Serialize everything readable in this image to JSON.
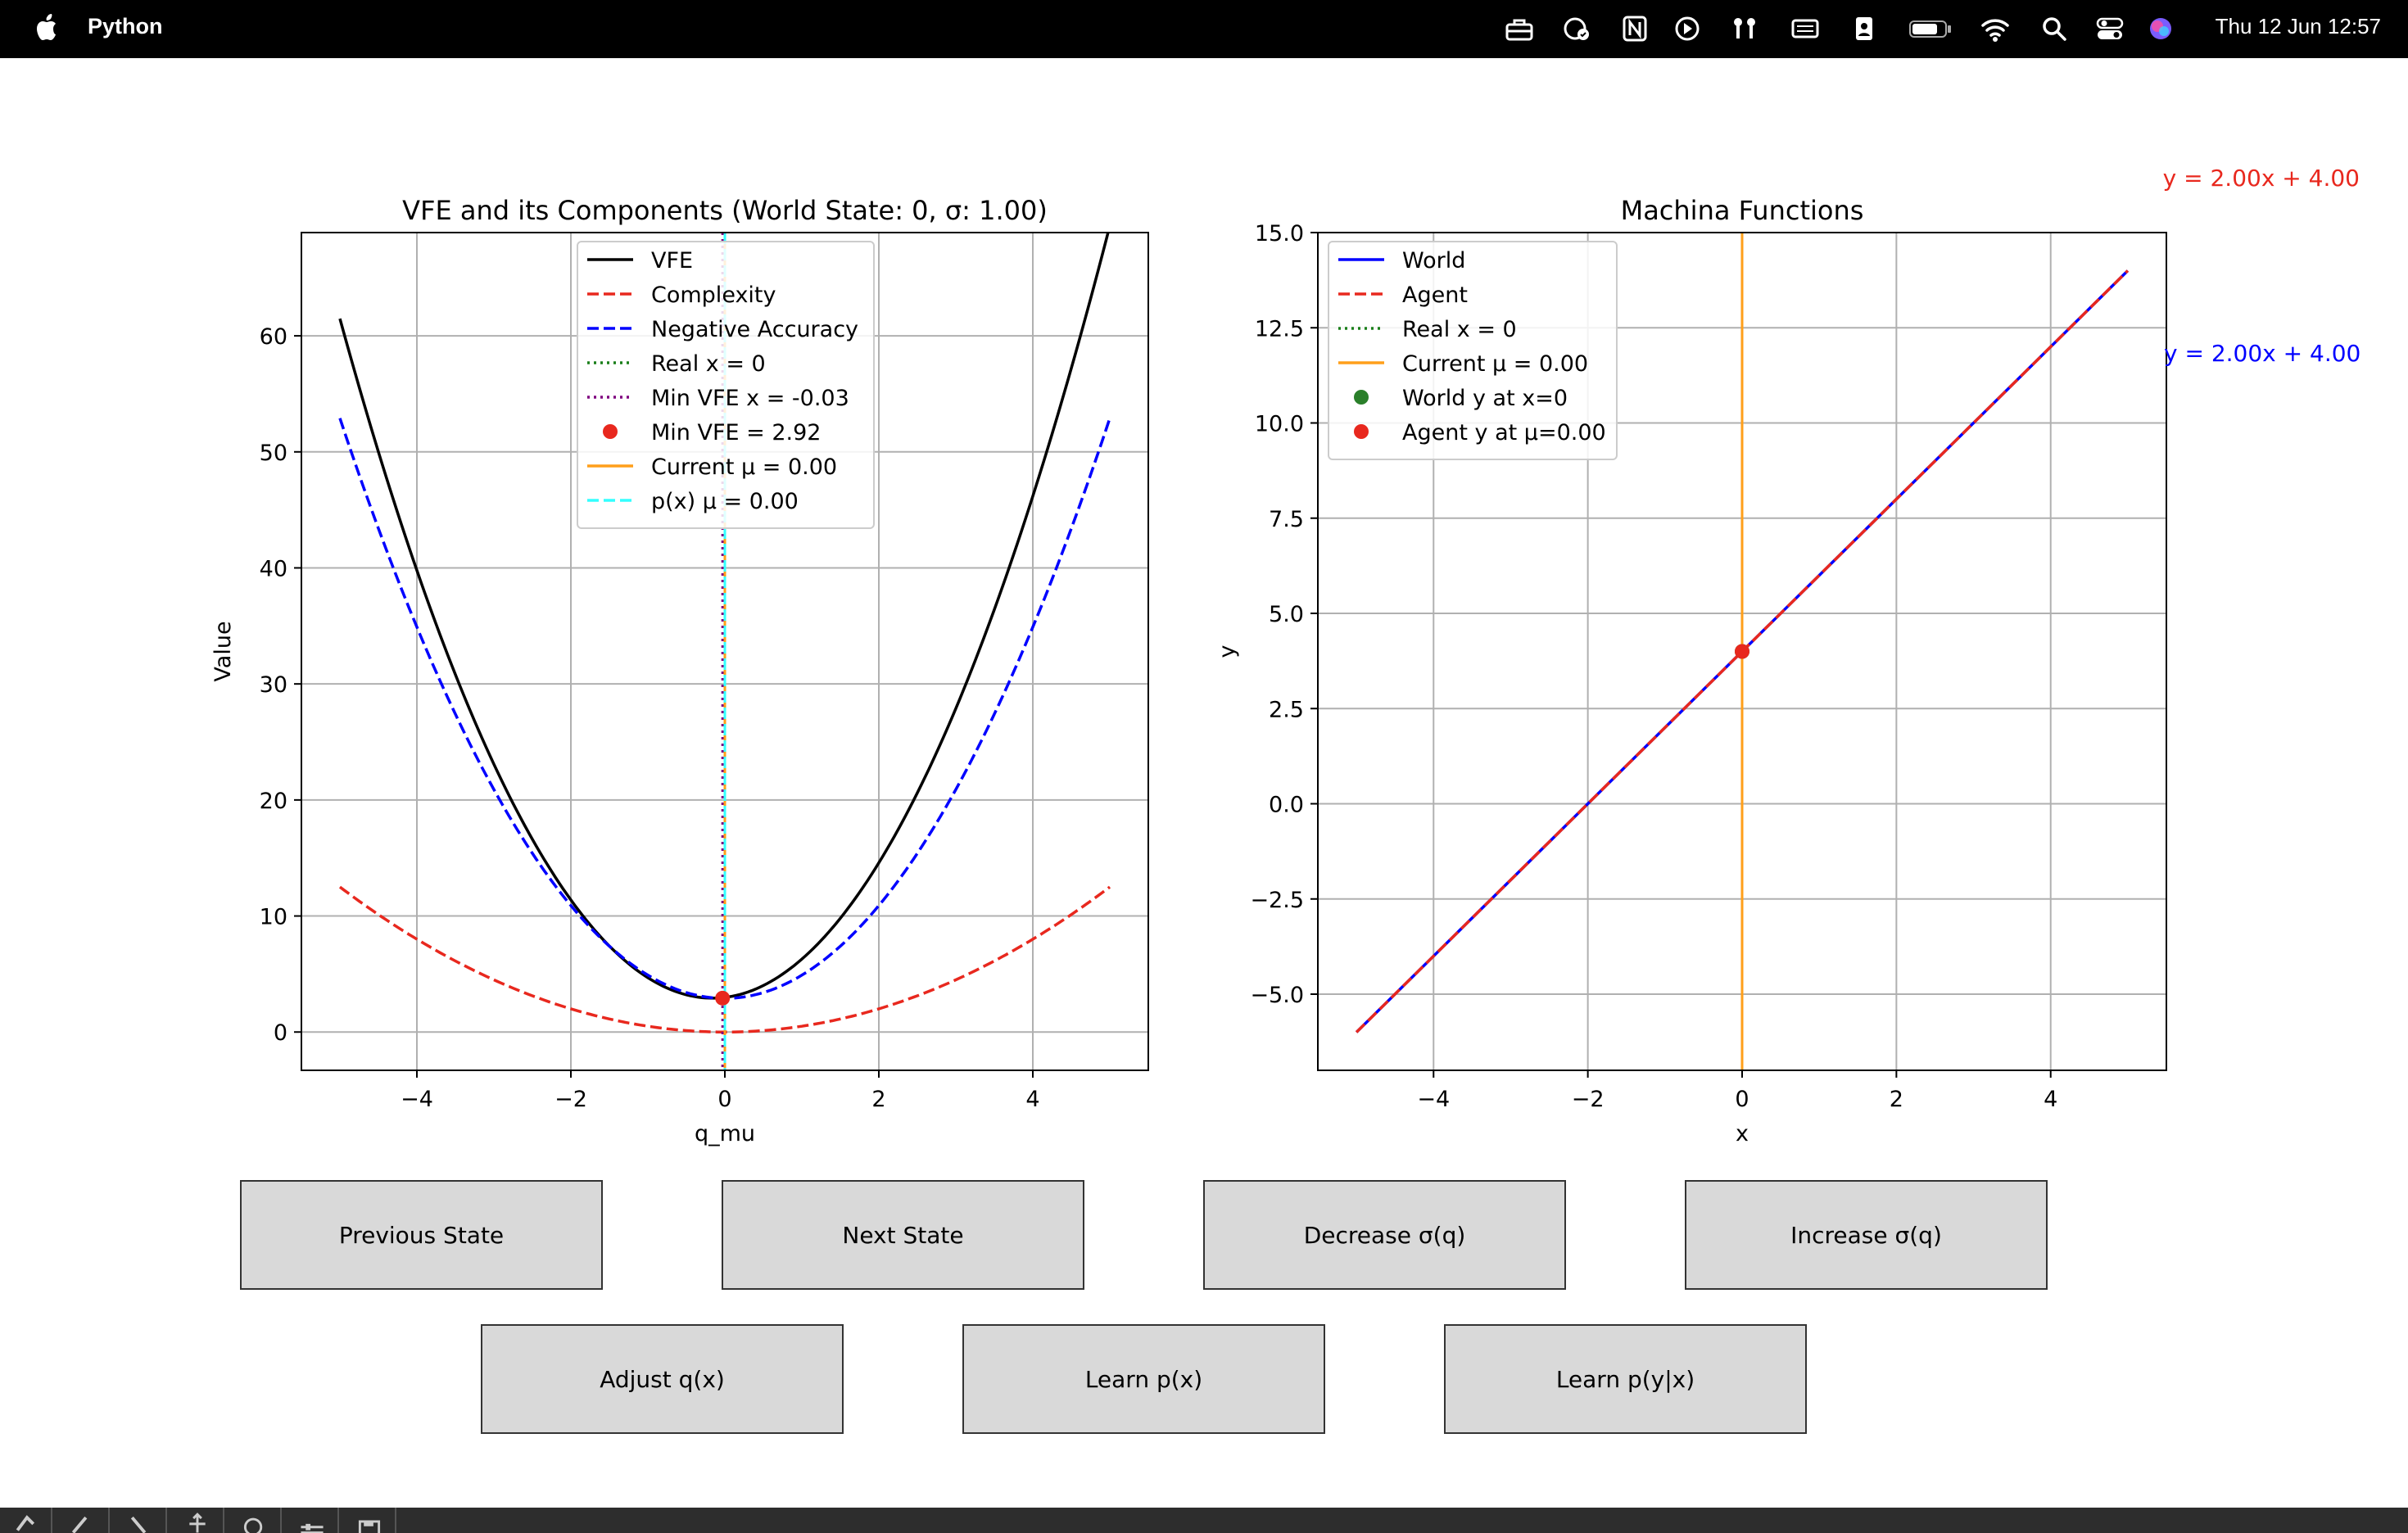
{
  "menubar": {
    "app_name": "Python",
    "clock": "Thu 12 Jun  12:57"
  },
  "annotations": {
    "agent_eq": "y = 2.00x + 4.00",
    "world_eq": "y = 2.00x + 4.00",
    "agent_color": "#e8281e",
    "world_color": "#0000ff"
  },
  "buttons": {
    "row1": [
      "Previous State",
      "Next State",
      "Decrease σ(q)",
      "Increase σ(q)"
    ],
    "row2": [
      "Adjust q(x)",
      "Learn p(x)",
      "Learn p(y|x)"
    ]
  },
  "chart_data": [
    {
      "type": "line",
      "title": "VFE and its Components (World State: 0, σ: 1.00)",
      "xlabel": "q_mu",
      "ylabel": "Value",
      "xlim": [
        -5.5,
        5.5
      ],
      "ylim": [
        -3.3,
        68.9
      ],
      "xticks": [
        -4,
        -2,
        0,
        2,
        4
      ],
      "xtick_labels": [
        "−4",
        "−2",
        "0",
        "2",
        "4"
      ],
      "yticks": [
        0,
        10,
        20,
        30,
        40,
        50,
        60
      ],
      "ytick_labels": [
        "0",
        "10",
        "20",
        "30",
        "40",
        "50",
        "60"
      ],
      "grid": true,
      "legend_position": "upper center",
      "series": [
        {
          "name": "VFE",
          "color": "#000000",
          "style": "solid",
          "quad": [
            2.5,
            -0.16,
            2.92
          ]
        },
        {
          "name": "Complexity",
          "color": "#e8281e",
          "style": "dashed",
          "quad": [
            0.5,
            0,
            0
          ]
        },
        {
          "name": "Negative Accuracy",
          "color": "#0000ff",
          "style": "dashed",
          "quad": [
            2.0,
            0,
            2.9
          ]
        }
      ],
      "x_range": [
        -5,
        5
      ],
      "vlines": [
        {
          "name": "Real x = 0",
          "x": 0,
          "color": "#1a7f1a",
          "style": "dotted"
        },
        {
          "name": "Min VFE x = -0.03",
          "x": -0.03,
          "color": "#7f007f",
          "style": "dotted"
        },
        {
          "name": "Current μ = 0.00",
          "x": 0,
          "color": "#ff9f1a",
          "style": "solid"
        },
        {
          "name": "p(x) μ = 0.00",
          "x": 0,
          "color": "#33ffff",
          "style": "dashed"
        }
      ],
      "points": [
        {
          "name": "Min VFE = 2.92",
          "x": -0.03,
          "y": 2.92,
          "color": "#e8281e"
        }
      ],
      "legend": [
        "VFE",
        "Complexity",
        "Negative Accuracy",
        "Real x = 0",
        "Min VFE x = -0.03",
        "Min VFE = 2.92",
        "Current μ = 0.00",
        "p(x) μ = 0.00"
      ]
    },
    {
      "type": "line",
      "title": "Machina Functions",
      "xlabel": "x",
      "ylabel": "y",
      "xlim": [
        -5.5,
        5.5
      ],
      "ylim": [
        -7.0,
        15.0
      ],
      "xticks": [
        -4,
        -2,
        0,
        2,
        4
      ],
      "xtick_labels": [
        "−4",
        "−2",
        "0",
        "2",
        "4"
      ],
      "yticks": [
        -5,
        -2.5,
        0,
        2.5,
        5,
        7.5,
        10,
        12.5,
        15
      ],
      "ytick_labels": [
        "−5.0",
        "−2.5",
        "0.0",
        "2.5",
        "5.0",
        "7.5",
        "10.0",
        "12.5",
        "15.0"
      ],
      "grid": true,
      "legend_position": "upper left",
      "series": [
        {
          "name": "World",
          "color": "#0000ff",
          "style": "solid",
          "x": [
            -5,
            5
          ],
          "y": [
            -6,
            14
          ]
        },
        {
          "name": "Agent",
          "color": "#e8281e",
          "style": "dashed",
          "x": [
            -5,
            5
          ],
          "y": [
            -6,
            14
          ]
        }
      ],
      "vlines": [
        {
          "name": "Real x = 0",
          "x": 0,
          "color": "#1a7f1a",
          "style": "dotted"
        },
        {
          "name": "Current μ = 0.00",
          "x": 0,
          "color": "#ff9f1a",
          "style": "solid"
        }
      ],
      "points": [
        {
          "name": "World y at x=0",
          "x": 0,
          "y": 4,
          "color": "#2a7f2a"
        },
        {
          "name": "Agent y at μ=0.00",
          "x": 0,
          "y": 4,
          "color": "#e8281e"
        }
      ],
      "legend": [
        "World",
        "Agent",
        "Real x = 0",
        "Current μ = 0.00",
        "World y at x=0",
        "Agent y at μ=0.00"
      ]
    }
  ]
}
